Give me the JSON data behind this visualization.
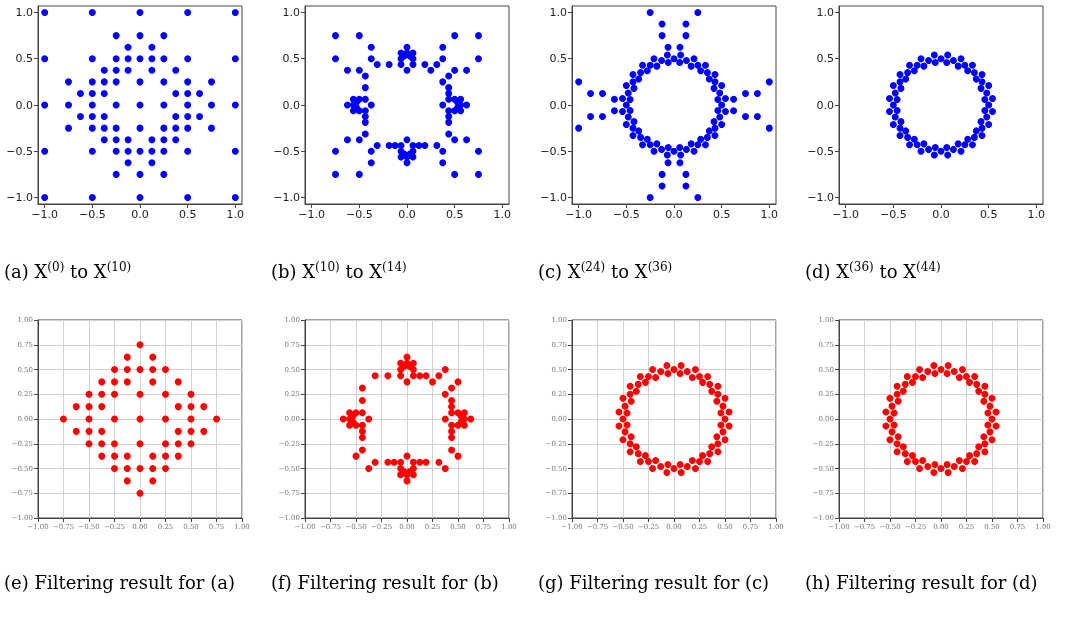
{
  "chart_data": [
    {
      "type": "scatter",
      "marker": "circle",
      "grid": false,
      "xlim": [
        -1.07,
        1.07
      ],
      "ylim": [
        -1.07,
        1.07
      ],
      "xticks": [
        {
          "value": -1,
          "label": "−1.0"
        },
        {
          "value": -0.5,
          "label": "−0.5"
        },
        {
          "value": 0,
          "label": "0.0"
        },
        {
          "value": 0.5,
          "label": "0.5"
        },
        {
          "value": 1,
          "label": "1.0"
        }
      ],
      "yticks": [
        {
          "value": -1,
          "label": "−1.0"
        },
        {
          "value": -0.5,
          "label": "−0.5"
        },
        {
          "value": 0,
          "label": "0.0"
        },
        {
          "value": 0.5,
          "label": "0.5"
        },
        {
          "value": 1,
          "label": "1.0"
        }
      ],
      "annotations": [
        "(a) X$^{(0)}$ to X$^{(10)}$"
      ],
      "series": [
        {
          "color": "#0000ff",
          "x": [
            -1,
            -0.5,
            0,
            0.5,
            1,
            -0.25,
            0,
            0.25,
            -0.125,
            0.125,
            -1,
            -0.5,
            -0.25,
            -0.125,
            0,
            0.125,
            0.25,
            0.5,
            1,
            -0.375,
            -0.25,
            -0.125,
            0.125,
            0.375,
            -0.75,
            -0.5,
            -0.375,
            -0.25,
            0,
            0.25,
            0.5,
            0.75,
            -0.625,
            -0.5,
            -0.375,
            0.375,
            0.5,
            0.625,
            -1,
            -0.75,
            -0.5,
            -0.25,
            0,
            0.25,
            0.5,
            0.75,
            1,
            -0.625,
            -0.5,
            -0.375,
            0.375,
            0.5,
            0.625,
            -0.75,
            -0.5,
            -0.375,
            -0.25,
            0,
            0.25,
            0.375,
            0.5,
            0.75,
            -0.375,
            -0.25,
            -0.125,
            0.125,
            0.25,
            0.375,
            -1,
            -0.5,
            -0.25,
            -0.125,
            0,
            0.125,
            0.25,
            0.5,
            1,
            -0.125,
            0.125,
            -0.25,
            0,
            0.25,
            -1,
            -0.5,
            0,
            0.5,
            1
          ],
          "values": [
            1,
            1,
            1,
            1,
            1,
            0.75,
            0.75,
            0.75,
            0.625,
            0.625,
            0.5,
            0.5,
            0.5,
            0.5,
            0.5,
            0.5,
            0.5,
            0.5,
            0.5,
            0.375,
            0.375,
            0.375,
            0.375,
            0.375,
            0.25,
            0.25,
            0.25,
            0.25,
            0.25,
            0.25,
            0.25,
            0.25,
            0.125,
            0.125,
            0.125,
            0.125,
            0.125,
            0.125,
            0,
            0,
            0,
            0,
            0,
            0,
            0,
            0,
            0,
            -0.125,
            -0.125,
            -0.125,
            -0.125,
            -0.125,
            -0.125,
            -0.25,
            -0.25,
            -0.25,
            -0.25,
            -0.25,
            -0.25,
            -0.25,
            -0.25,
            -0.25,
            -0.375,
            -0.375,
            -0.375,
            -0.375,
            -0.375,
            -0.375,
            -0.5,
            -0.5,
            -0.5,
            -0.5,
            -0.5,
            -0.5,
            -0.5,
            -0.5,
            -0.5,
            -0.625,
            -0.625,
            -0.75,
            -0.75,
            -0.75,
            -1,
            -1,
            -1,
            -1,
            -1
          ]
        }
      ]
    },
    {
      "type": "scatter",
      "marker": "circle",
      "grid": false,
      "xlim": [
        -1.07,
        1.07
      ],
      "ylim": [
        -1.07,
        1.07
      ],
      "xticks": [
        {
          "value": -1,
          "label": "−1.0"
        },
        {
          "value": -0.5,
          "label": "−0.5"
        },
        {
          "value": 0,
          "label": "0.0"
        },
        {
          "value": 0.5,
          "label": "0.5"
        },
        {
          "value": 1,
          "label": "1.0"
        }
      ],
      "yticks": [
        {
          "value": -1,
          "label": "−1.0"
        },
        {
          "value": -0.5,
          "label": "−0.5"
        },
        {
          "value": 0,
          "label": "0.0"
        },
        {
          "value": 0.5,
          "label": "0.5"
        },
        {
          "value": 1,
          "label": "1.0"
        }
      ],
      "annotations": [
        "(b) X$^{(10)}$ to X$^{(14)}$"
      ],
      "series": [
        {
          "color": "#0000ff",
          "x": [
            -0.75,
            -0.5,
            0.5,
            0.75,
            -0.375,
            0,
            0.375,
            -0.0625,
            0,
            0.0625,
            -0.03,
            0.03,
            -0.75,
            -0.375,
            -0.0625,
            0.0625,
            0.375,
            0.75,
            -0.3125,
            -0.1875,
            -0.0625,
            0.0625,
            0.1875,
            0.3125,
            -0.625,
            -0.5,
            0,
            0.25,
            0.5,
            0.625,
            -0.4375,
            0.4375,
            0.375,
            -0.4375,
            0.4375,
            0.4375,
            -0.5625,
            -0.5,
            -0.4375,
            0.4375,
            0.5,
            0.5625,
            -0.53,
            0.53,
            -0.625,
            -0.5625,
            -0.375,
            0.375,
            0.5625,
            0.625,
            -0.53,
            0.53,
            -0.5625,
            -0.5,
            -0.4375,
            0.4375,
            0.5,
            0.5625,
            -0.4375,
            0.4375,
            -0.4375,
            0.4375,
            -0.4375,
            0.4375,
            -0.625,
            -0.5,
            0,
            0.5,
            0.625,
            -0.3125,
            -0.1875,
            -0.125,
            -0.0625,
            0.0625,
            0.125,
            0.1875,
            0.3125,
            -0.75,
            -0.375,
            -0.0625,
            0.0625,
            0.375,
            0.75,
            -0.03,
            0.03,
            -0.0625,
            0,
            0.0625,
            -0.375,
            0,
            0.375,
            -0.75,
            -0.5,
            0.5,
            0.75
          ],
          "values": [
            0.75,
            0.75,
            0.75,
            0.75,
            0.625,
            0.625,
            0.625,
            0.5625,
            0.5625,
            0.5625,
            0.53,
            0.53,
            0.5,
            0.5,
            0.5,
            0.5,
            0.5,
            0.5,
            0.4375,
            0.4375,
            0.4375,
            0.4375,
            0.4375,
            0.4375,
            0.375,
            0.375,
            0.375,
            0.375,
            0.375,
            0.375,
            0.3125,
            0.3125,
            0.25,
            0.1875,
            0.1875,
            0.125,
            0.0625,
            0.0625,
            0.0625,
            0.0625,
            0.0625,
            0.0625,
            0.03,
            0.03,
            0,
            0,
            0,
            0,
            0,
            0,
            -0.03,
            -0.03,
            -0.0625,
            -0.0625,
            -0.0625,
            -0.0625,
            -0.0625,
            -0.0625,
            -0.125,
            -0.125,
            -0.1875,
            -0.1875,
            -0.3125,
            -0.3125,
            -0.375,
            -0.375,
            -0.375,
            -0.375,
            -0.375,
            -0.4375,
            -0.4375,
            -0.4375,
            -0.4375,
            -0.4375,
            -0.4375,
            -0.4375,
            -0.4375,
            -0.5,
            -0.5,
            -0.5,
            -0.5,
            -0.5,
            -0.5,
            -0.53,
            -0.53,
            -0.5625,
            -0.5625,
            -0.5625,
            -0.625,
            -0.625,
            -0.625,
            -0.75,
            -0.75,
            -0.75,
            -0.75
          ]
        }
      ]
    },
    {
      "type": "scatter",
      "marker": "circle",
      "grid": false,
      "xlim": [
        -1.07,
        1.07
      ],
      "ylim": [
        -1.07,
        1.07
      ],
      "xticks": [
        {
          "value": -1,
          "label": "−1.0"
        },
        {
          "value": -0.5,
          "label": "−0.5"
        },
        {
          "value": 0,
          "label": "0.0"
        },
        {
          "value": 0.5,
          "label": "0.5"
        },
        {
          "value": 1,
          "label": "1.0"
        }
      ],
      "yticks": [
        {
          "value": -1,
          "label": "−1.0"
        },
        {
          "value": -0.5,
          "label": "−0.5"
        },
        {
          "value": 0,
          "label": "0.0"
        },
        {
          "value": 0.5,
          "label": "0.5"
        },
        {
          "value": 1,
          "label": "1.0"
        }
      ],
      "annotations": [
        "(c) X$^{(24)}$ to X$^{(36)}$"
      ],
      "series": [
        {
          "color": "#0000ff",
          "x": [
            0.5,
            0.48,
            0.43,
            0.35,
            0.25,
            0.13,
            0.46,
            0.42,
            0.37,
            0.28,
            0.18,
            0.06,
            0.54,
            0.5,
            0.43,
            0.33,
            0.21,
            0.07,
            0,
            -0.13,
            -0.25,
            -0.35,
            -0.43,
            -0.48,
            -0.06,
            -0.18,
            -0.28,
            -0.37,
            -0.42,
            -0.46,
            -0.07,
            -0.21,
            -0.33,
            -0.43,
            -0.5,
            -0.54,
            -0.5,
            -0.48,
            -0.43,
            -0.35,
            -0.25,
            -0.13,
            -0.46,
            -0.42,
            -0.37,
            -0.28,
            -0.18,
            -0.06,
            -0.54,
            -0.5,
            -0.43,
            -0.33,
            -0.21,
            -0.07,
            0,
            0.13,
            0.25,
            0.35,
            0.43,
            0.48,
            0.06,
            0.18,
            0.28,
            0.37,
            0.42,
            0.46,
            0.07,
            0.21,
            0.33,
            0.43,
            0.5,
            0.54,
            1,
            1,
            -1,
            -1,
            0.875,
            0.875,
            -0.875,
            -0.875,
            0.75,
            0.75,
            -0.75,
            -0.75,
            0.625,
            0.625,
            -0.625,
            -0.625,
            0.25,
            -0.25,
            0.25,
            -0.25,
            0.125,
            -0.125,
            0.125,
            -0.125,
            0.125,
            -0.125,
            0.125,
            -0.125,
            0.0625,
            -0.0625,
            0.0625,
            -0.0625
          ],
          "values": [
            0,
            0.13,
            0.25,
            0.35,
            0.43,
            0.48,
            0.06,
            0.18,
            0.28,
            0.37,
            0.42,
            0.46,
            0.07,
            0.21,
            0.33,
            0.43,
            0.5,
            0.54,
            0.5,
            0.48,
            0.43,
            0.35,
            0.25,
            0.13,
            0.46,
            0.42,
            0.37,
            0.28,
            0.18,
            0.06,
            0.54,
            0.5,
            0.43,
            0.33,
            0.21,
            0.07,
            0,
            -0.13,
            -0.25,
            -0.35,
            -0.43,
            -0.48,
            -0.06,
            -0.18,
            -0.28,
            -0.37,
            -0.42,
            -0.46,
            -0.07,
            -0.21,
            -0.33,
            -0.43,
            -0.5,
            -0.54,
            -0.5,
            -0.48,
            -0.43,
            -0.35,
            -0.25,
            -0.13,
            -0.46,
            -0.42,
            -0.37,
            -0.28,
            -0.18,
            -0.06,
            -0.54,
            -0.5,
            -0.43,
            -0.33,
            -0.21,
            -0.07,
            0.25,
            -0.25,
            0.25,
            -0.25,
            0.125,
            -0.125,
            0.125,
            -0.125,
            0.125,
            -0.125,
            0.125,
            -0.125,
            0.0625,
            -0.0625,
            0.0625,
            -0.0625,
            1,
            1,
            -1,
            -1,
            0.875,
            0.875,
            -0.875,
            -0.875,
            0.75,
            0.75,
            -0.75,
            -0.75,
            0.625,
            0.625,
            -0.625,
            -0.625
          ]
        }
      ]
    },
    {
      "type": "scatter",
      "marker": "circle",
      "grid": false,
      "xlim": [
        -1.07,
        1.07
      ],
      "ylim": [
        -1.07,
        1.07
      ],
      "xticks": [
        {
          "value": -1,
          "label": "−1.0"
        },
        {
          "value": -0.5,
          "label": "−0.5"
        },
        {
          "value": 0,
          "label": "0.0"
        },
        {
          "value": 0.5,
          "label": "0.5"
        },
        {
          "value": 1,
          "label": "1.0"
        }
      ],
      "yticks": [
        {
          "value": -1,
          "label": "−1.0"
        },
        {
          "value": -0.5,
          "label": "−0.5"
        },
        {
          "value": 0,
          "label": "0.0"
        },
        {
          "value": 0.5,
          "label": "0.5"
        },
        {
          "value": 1,
          "label": "1.0"
        }
      ],
      "annotations": [
        "(d) X$^{(36)}$ to X$^{(44)}$"
      ],
      "series": [
        {
          "color": "#0000ff",
          "x": [
            0.5,
            0.48,
            0.43,
            0.35,
            0.25,
            0.13,
            0.46,
            0.42,
            0.37,
            0.28,
            0.18,
            0.06,
            0.54,
            0.5,
            0.43,
            0.33,
            0.21,
            0.07,
            0,
            -0.13,
            -0.25,
            -0.35,
            -0.43,
            -0.48,
            -0.06,
            -0.18,
            -0.28,
            -0.37,
            -0.42,
            -0.46,
            -0.07,
            -0.21,
            -0.33,
            -0.43,
            -0.5,
            -0.54,
            -0.5,
            -0.48,
            -0.43,
            -0.35,
            -0.25,
            -0.13,
            -0.46,
            -0.42,
            -0.37,
            -0.28,
            -0.18,
            -0.06,
            -0.54,
            -0.5,
            -0.43,
            -0.33,
            -0.21,
            -0.07,
            0,
            0.13,
            0.25,
            0.35,
            0.43,
            0.48,
            0.06,
            0.18,
            0.28,
            0.37,
            0.42,
            0.46,
            0.07,
            0.21,
            0.33,
            0.43,
            0.5,
            0.54
          ],
          "values": [
            0,
            0.13,
            0.25,
            0.35,
            0.43,
            0.48,
            0.06,
            0.18,
            0.28,
            0.37,
            0.42,
            0.46,
            0.07,
            0.21,
            0.33,
            0.43,
            0.5,
            0.54,
            0.5,
            0.48,
            0.43,
            0.35,
            0.25,
            0.13,
            0.46,
            0.42,
            0.37,
            0.28,
            0.18,
            0.06,
            0.54,
            0.5,
            0.43,
            0.33,
            0.21,
            0.07,
            0,
            -0.13,
            -0.25,
            -0.35,
            -0.43,
            -0.48,
            -0.06,
            -0.18,
            -0.28,
            -0.37,
            -0.42,
            -0.46,
            -0.07,
            -0.21,
            -0.33,
            -0.43,
            -0.5,
            -0.54,
            -0.5,
            -0.48,
            -0.43,
            -0.35,
            -0.25,
            -0.13,
            -0.46,
            -0.42,
            -0.37,
            -0.28,
            -0.18,
            -0.06,
            -0.54,
            -0.5,
            -0.43,
            -0.33,
            -0.21,
            -0.07
          ]
        }
      ]
    },
    {
      "type": "scatter",
      "marker": "circle",
      "grid": true,
      "xlim": [
        -1,
        1
      ],
      "ylim": [
        -1,
        1
      ],
      "xticks": [
        {
          "value": -1,
          "label": "−1.00"
        },
        {
          "value": -0.75,
          "label": "−0.75"
        },
        {
          "value": -0.5,
          "label": "−0.50"
        },
        {
          "value": -0.25,
          "label": "−0.25"
        },
        {
          "value": 0,
          "label": "0.00"
        },
        {
          "value": 0.25,
          "label": "0.25"
        },
        {
          "value": 0.5,
          "label": "0.50"
        },
        {
          "value": 0.75,
          "label": "0.75"
        },
        {
          "value": 1,
          "label": "1.00"
        }
      ],
      "yticks": [
        {
          "value": -1,
          "label": "−1.00"
        },
        {
          "value": -0.75,
          "label": "−0.75"
        },
        {
          "value": -0.5,
          "label": "−0.50"
        },
        {
          "value": -0.25,
          "label": "−0.25"
        },
        {
          "value": 0,
          "label": "0.00"
        },
        {
          "value": 0.25,
          "label": "0.25"
        },
        {
          "value": 0.5,
          "label": "0.50"
        },
        {
          "value": 0.75,
          "label": "0.75"
        },
        {
          "value": 1,
          "label": "1.00"
        }
      ],
      "annotations": [
        "(e) Filtering result for (a)"
      ],
      "series": [
        {
          "color": "#ff0000",
          "x": [
            0,
            -0.125,
            0.125,
            -0.25,
            -0.125,
            0,
            0.125,
            0.25,
            -0.375,
            -0.25,
            -0.125,
            0.125,
            0.375,
            -0.5,
            -0.375,
            -0.25,
            0,
            0.25,
            0.5,
            -0.625,
            -0.5,
            -0.375,
            0.375,
            0.5,
            0.625,
            -0.75,
            -0.5,
            -0.25,
            0,
            0.25,
            0.5,
            0.75,
            -0.625,
            -0.5,
            -0.375,
            0.375,
            0.5,
            0.625,
            -0.5,
            -0.375,
            -0.25,
            0,
            0.25,
            0.375,
            0.5,
            -0.375,
            -0.25,
            -0.125,
            0.125,
            0.25,
            0.375,
            -0.25,
            -0.125,
            0,
            0.125,
            0.25,
            -0.125,
            0.125,
            0
          ],
          "values": [
            0.75,
            0.625,
            0.625,
            0.5,
            0.5,
            0.5,
            0.5,
            0.5,
            0.375,
            0.375,
            0.375,
            0.375,
            0.375,
            0.25,
            0.25,
            0.25,
            0.25,
            0.25,
            0.25,
            0.125,
            0.125,
            0.125,
            0.125,
            0.125,
            0.125,
            0,
            0,
            0,
            0,
            0,
            0,
            0,
            -0.125,
            -0.125,
            -0.125,
            -0.125,
            -0.125,
            -0.125,
            -0.25,
            -0.25,
            -0.25,
            -0.25,
            -0.25,
            -0.25,
            -0.25,
            -0.375,
            -0.375,
            -0.375,
            -0.375,
            -0.375,
            -0.375,
            -0.5,
            -0.5,
            -0.5,
            -0.5,
            -0.5,
            -0.625,
            -0.625,
            -0.75
          ]
        }
      ]
    },
    {
      "type": "scatter",
      "marker": "circle",
      "grid": true,
      "xlim": [
        -1,
        1
      ],
      "ylim": [
        -1,
        1
      ],
      "xticks": [
        {
          "value": -1,
          "label": "−1.00"
        },
        {
          "value": -0.75,
          "label": "−0.75"
        },
        {
          "value": -0.5,
          "label": "−0.50"
        },
        {
          "value": -0.25,
          "label": "−0.25"
        },
        {
          "value": 0,
          "label": "0.00"
        },
        {
          "value": 0.25,
          "label": "0.25"
        },
        {
          "value": 0.5,
          "label": "0.50"
        },
        {
          "value": 0.75,
          "label": "0.75"
        },
        {
          "value": 1,
          "label": "1.00"
        }
      ],
      "yticks": [
        {
          "value": -1,
          "label": "−1.00"
        },
        {
          "value": -0.75,
          "label": "−0.75"
        },
        {
          "value": -0.5,
          "label": "−0.50"
        },
        {
          "value": -0.25,
          "label": "−0.25"
        },
        {
          "value": 0,
          "label": "0.00"
        },
        {
          "value": 0.25,
          "label": "0.25"
        },
        {
          "value": 0.5,
          "label": "0.50"
        },
        {
          "value": 0.75,
          "label": "0.75"
        },
        {
          "value": 1,
          "label": "1.00"
        }
      ],
      "annotations": [
        "(f) Filtering result for (b)"
      ],
      "series": [
        {
          "color": "#ff0000",
          "x": [
            0,
            -0.0625,
            0,
            0.0625,
            -0.03,
            0.03,
            -0.0625,
            0.0625,
            0.375,
            -0.3125,
            -0.1875,
            -0.0625,
            0.0625,
            0.125,
            0.1875,
            0.3125,
            0,
            0.25,
            0.5,
            -0.4375,
            0.4375,
            0.375,
            -0.4375,
            0.4375,
            0.4375,
            -0.5625,
            -0.5,
            -0.4375,
            0.4375,
            0.5,
            0.5625,
            -0.53,
            0.53,
            -0.625,
            -0.5625,
            -0.375,
            0.375,
            0.5625,
            0.625,
            -0.53,
            0.53,
            -0.5625,
            -0.5,
            -0.4375,
            0.4375,
            0.5,
            0.5625,
            -0.4375,
            0.4375,
            -0.4375,
            0.4375,
            -0.4375,
            0.4375,
            -0.5,
            0,
            0.5,
            -0.3125,
            -0.1875,
            -0.125,
            -0.0625,
            0.0625,
            0.125,
            0.1875,
            0.3125,
            -0.375,
            -0.0625,
            0.0625,
            0.375,
            -0.03,
            0.03,
            -0.0625,
            0,
            0.0625,
            0
          ],
          "values": [
            0.625,
            0.5625,
            0.5625,
            0.5625,
            0.53,
            0.53,
            0.5,
            0.5,
            0.5,
            0.4375,
            0.4375,
            0.4375,
            0.4375,
            0.4375,
            0.4375,
            0.4375,
            0.375,
            0.375,
            0.375,
            0.3125,
            0.3125,
            0.25,
            0.1875,
            0.1875,
            0.125,
            0.0625,
            0.0625,
            0.0625,
            0.0625,
            0.0625,
            0.0625,
            0.03,
            0.03,
            0,
            0,
            0,
            0,
            0,
            0,
            -0.03,
            -0.03,
            -0.0625,
            -0.0625,
            -0.0625,
            -0.0625,
            -0.0625,
            -0.0625,
            -0.125,
            -0.125,
            -0.1875,
            -0.1875,
            -0.3125,
            -0.3125,
            -0.375,
            -0.375,
            -0.375,
            -0.4375,
            -0.4375,
            -0.4375,
            -0.4375,
            -0.4375,
            -0.4375,
            -0.4375,
            -0.4375,
            -0.5,
            -0.5,
            -0.5,
            -0.5,
            -0.53,
            -0.53,
            -0.5625,
            -0.5625,
            -0.5625,
            -0.625
          ]
        }
      ]
    },
    {
      "type": "scatter",
      "marker": "circle",
      "grid": true,
      "xlim": [
        -1,
        1
      ],
      "ylim": [
        -1,
        1
      ],
      "xticks": [
        {
          "value": -1,
          "label": "−1.00"
        },
        {
          "value": -0.75,
          "label": "−0.75"
        },
        {
          "value": -0.5,
          "label": "−0.50"
        },
        {
          "value": -0.25,
          "label": "−0.25"
        },
        {
          "value": 0,
          "label": "0.00"
        },
        {
          "value": 0.25,
          "label": "0.25"
        },
        {
          "value": 0.5,
          "label": "0.50"
        },
        {
          "value": 0.75,
          "label": "0.75"
        },
        {
          "value": 1,
          "label": "1.00"
        }
      ],
      "yticks": [
        {
          "value": -1,
          "label": "−1.00"
        },
        {
          "value": -0.75,
          "label": "−0.75"
        },
        {
          "value": -0.5,
          "label": "−0.50"
        },
        {
          "value": -0.25,
          "label": "−0.25"
        },
        {
          "value": 0,
          "label": "0.00"
        },
        {
          "value": 0.25,
          "label": "0.25"
        },
        {
          "value": 0.5,
          "label": "0.50"
        },
        {
          "value": 0.75,
          "label": "0.75"
        },
        {
          "value": 1,
          "label": "1.00"
        }
      ],
      "annotations": [
        "(g) Filtering result for (c)"
      ],
      "series": [
        {
          "color": "#ff0000",
          "x": [
            0.5,
            0.48,
            0.43,
            0.35,
            0.25,
            0.13,
            0.46,
            0.42,
            0.37,
            0.28,
            0.18,
            0.06,
            0.54,
            0.5,
            0.43,
            0.33,
            0.21,
            0.07,
            0,
            -0.13,
            -0.25,
            -0.35,
            -0.43,
            -0.48,
            -0.06,
            -0.18,
            -0.28,
            -0.37,
            -0.42,
            -0.46,
            -0.07,
            -0.21,
            -0.33,
            -0.43,
            -0.5,
            -0.54,
            -0.5,
            -0.48,
            -0.43,
            -0.35,
            -0.25,
            -0.13,
            -0.46,
            -0.42,
            -0.37,
            -0.28,
            -0.18,
            -0.06,
            -0.54,
            -0.5,
            -0.43,
            -0.33,
            -0.21,
            -0.07,
            0,
            0.13,
            0.25,
            0.35,
            0.43,
            0.48,
            0.06,
            0.18,
            0.28,
            0.37,
            0.42,
            0.46,
            0.07,
            0.21,
            0.33,
            0.43,
            0.5,
            0.54
          ],
          "values": [
            0,
            0.13,
            0.25,
            0.35,
            0.43,
            0.48,
            0.06,
            0.18,
            0.28,
            0.37,
            0.42,
            0.46,
            0.07,
            0.21,
            0.33,
            0.43,
            0.5,
            0.54,
            0.5,
            0.48,
            0.43,
            0.35,
            0.25,
            0.13,
            0.46,
            0.42,
            0.37,
            0.28,
            0.18,
            0.06,
            0.54,
            0.5,
            0.43,
            0.33,
            0.21,
            0.07,
            0,
            -0.13,
            -0.25,
            -0.35,
            -0.43,
            -0.48,
            -0.06,
            -0.18,
            -0.28,
            -0.37,
            -0.42,
            -0.46,
            -0.07,
            -0.21,
            -0.33,
            -0.43,
            -0.5,
            -0.54,
            -0.5,
            -0.48,
            -0.43,
            -0.35,
            -0.25,
            -0.13,
            -0.46,
            -0.42,
            -0.37,
            -0.28,
            -0.18,
            -0.06,
            -0.54,
            -0.5,
            -0.43,
            -0.33,
            -0.21,
            -0.07
          ]
        }
      ]
    },
    {
      "type": "scatter",
      "marker": "circle",
      "grid": true,
      "xlim": [
        -1,
        1
      ],
      "ylim": [
        -1,
        1
      ],
      "xticks": [
        {
          "value": -1,
          "label": "−1.00"
        },
        {
          "value": -0.75,
          "label": "−0.75"
        },
        {
          "value": -0.5,
          "label": "−0.50"
        },
        {
          "value": -0.25,
          "label": "−0.25"
        },
        {
          "value": 0,
          "label": "0.00"
        },
        {
          "value": 0.25,
          "label": "0.25"
        },
        {
          "value": 0.5,
          "label": "0.50"
        },
        {
          "value": 0.75,
          "label": "0.75"
        },
        {
          "value": 1,
          "label": "1.00"
        }
      ],
      "yticks": [
        {
          "value": -1,
          "label": "−1.00"
        },
        {
          "value": -0.75,
          "label": "−0.75"
        },
        {
          "value": -0.5,
          "label": "−0.50"
        },
        {
          "value": -0.25,
          "label": "−0.25"
        },
        {
          "value": 0,
          "label": "0.00"
        },
        {
          "value": 0.25,
          "label": "0.25"
        },
        {
          "value": 0.5,
          "label": "0.50"
        },
        {
          "value": 0.75,
          "label": "0.75"
        },
        {
          "value": 1,
          "label": "1.00"
        }
      ],
      "annotations": [
        "(h) Filtering result for (d)"
      ],
      "series": [
        {
          "color": "#ff0000",
          "x": [
            0.5,
            0.48,
            0.43,
            0.35,
            0.25,
            0.13,
            0.46,
            0.42,
            0.37,
            0.28,
            0.18,
            0.06,
            0.54,
            0.5,
            0.43,
            0.33,
            0.21,
            0.07,
            0,
            -0.13,
            -0.25,
            -0.35,
            -0.43,
            -0.48,
            -0.06,
            -0.18,
            -0.28,
            -0.37,
            -0.42,
            -0.46,
            -0.07,
            -0.21,
            -0.33,
            -0.43,
            -0.5,
            -0.54,
            -0.5,
            -0.48,
            -0.43,
            -0.35,
            -0.25,
            -0.13,
            -0.46,
            -0.42,
            -0.37,
            -0.28,
            -0.18,
            -0.06,
            -0.54,
            -0.5,
            -0.43,
            -0.33,
            -0.21,
            -0.07,
            0,
            0.13,
            0.25,
            0.35,
            0.43,
            0.48,
            0.06,
            0.18,
            0.28,
            0.37,
            0.42,
            0.46,
            0.07,
            0.21,
            0.33,
            0.43,
            0.5,
            0.54
          ],
          "values": [
            0,
            0.13,
            0.25,
            0.35,
            0.43,
            0.48,
            0.06,
            0.18,
            0.28,
            0.37,
            0.42,
            0.46,
            0.07,
            0.21,
            0.33,
            0.43,
            0.5,
            0.54,
            0.5,
            0.48,
            0.43,
            0.35,
            0.25,
            0.13,
            0.46,
            0.42,
            0.37,
            0.28,
            0.18,
            0.06,
            0.54,
            0.5,
            0.43,
            0.33,
            0.21,
            0.07,
            0,
            -0.13,
            -0.25,
            -0.35,
            -0.43,
            -0.48,
            -0.06,
            -0.18,
            -0.28,
            -0.37,
            -0.42,
            -0.46,
            -0.07,
            -0.21,
            -0.33,
            -0.43,
            -0.5,
            -0.54,
            -0.5,
            -0.48,
            -0.43,
            -0.35,
            -0.25,
            -0.13,
            -0.46,
            -0.42,
            -0.37,
            -0.28,
            -0.18,
            -0.06,
            -0.54,
            -0.5,
            -0.43,
            -0.33,
            -0.21,
            -0.07
          ]
        }
      ]
    }
  ]
}
